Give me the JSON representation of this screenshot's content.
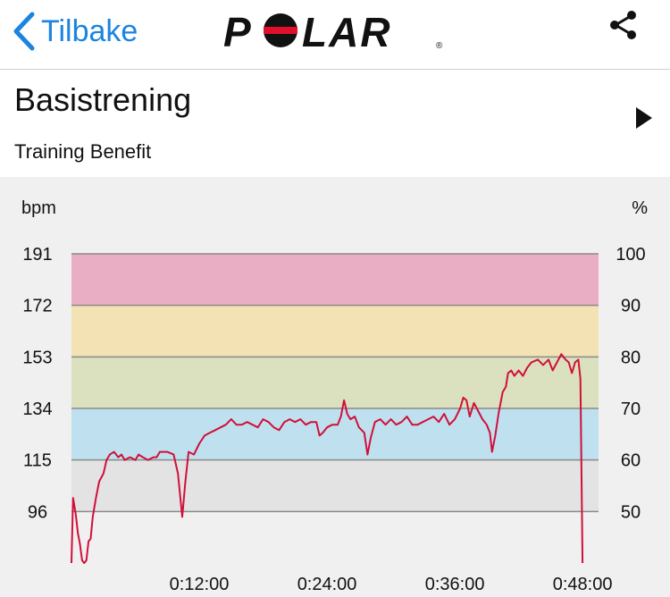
{
  "nav": {
    "back_label": "Tilbake",
    "back_icon": "chevron-left-icon",
    "logo_text": "POLAR",
    "share_icon": "share-icon"
  },
  "header": {
    "title": "Basistrening",
    "subtitle": "Training Benefit",
    "play_icon": "play-icon"
  },
  "colors": {
    "accent": "#1a84e0",
    "line": "#d0103a",
    "zone_max": "#eaaec4",
    "zone_hard": "#f3e2b4",
    "zone_moderate": "#dbe1bf",
    "zone_light": "#bfe1ef",
    "zone_very_light": "#e3e3e3"
  },
  "chart_data": {
    "type": "line",
    "left_axis_label": "bpm",
    "right_axis_label": "%",
    "left_ticks": [
      "191",
      "172",
      "153",
      "134",
      "115",
      "96"
    ],
    "right_ticks": [
      "100",
      "90",
      "80",
      "70",
      "60",
      "50"
    ],
    "x_ticks": [
      "0:12:00",
      "0:24:00",
      "0:36:00",
      "0:48:00"
    ],
    "x_tick_minutes": [
      12,
      24,
      36,
      48
    ],
    "xlim_minutes": [
      0,
      49.5
    ],
    "ylim_bpm": [
      77,
      191
    ],
    "zones": [
      {
        "name": "zone-max",
        "from": 172,
        "to": 191,
        "color": "#eaaec4"
      },
      {
        "name": "zone-hard",
        "from": 153,
        "to": 172,
        "color": "#f3e2b4"
      },
      {
        "name": "zone-moderate",
        "from": 134,
        "to": 153,
        "color": "#dbe1bf"
      },
      {
        "name": "zone-light",
        "from": 115,
        "to": 134,
        "color": "#bfe1ef"
      },
      {
        "name": "zone-very-light",
        "from": 96,
        "to": 115,
        "color": "#e3e3e3"
      }
    ],
    "series": [
      {
        "values": [
          [
            0.0,
            77
          ],
          [
            0.15,
            101
          ],
          [
            0.4,
            95
          ],
          [
            0.6,
            88
          ],
          [
            0.8,
            84
          ],
          [
            1.0,
            78
          ],
          [
            1.2,
            77
          ],
          [
            1.4,
            78
          ],
          [
            1.6,
            85
          ],
          [
            1.8,
            86
          ],
          [
            2.0,
            94
          ],
          [
            2.3,
            101
          ],
          [
            2.6,
            107
          ],
          [
            3.0,
            110
          ],
          [
            3.3,
            115
          ],
          [
            3.6,
            117
          ],
          [
            4.0,
            118
          ],
          [
            4.4,
            116
          ],
          [
            4.7,
            117
          ],
          [
            5.0,
            115
          ],
          [
            5.5,
            116
          ],
          [
            6.0,
            115
          ],
          [
            6.3,
            117
          ],
          [
            6.7,
            116
          ],
          [
            7.2,
            115
          ],
          [
            7.7,
            116
          ],
          [
            8.0,
            116
          ],
          [
            8.3,
            118
          ],
          [
            9.0,
            118
          ],
          [
            9.6,
            117
          ],
          [
            10.0,
            110
          ],
          [
            10.4,
            94
          ],
          [
            10.7,
            107
          ],
          [
            11.0,
            118
          ],
          [
            11.5,
            117
          ],
          [
            12.0,
            121
          ],
          [
            12.5,
            124
          ],
          [
            13.0,
            125
          ],
          [
            13.5,
            126
          ],
          [
            14.0,
            127
          ],
          [
            14.5,
            128
          ],
          [
            15.0,
            130
          ],
          [
            15.5,
            128
          ],
          [
            16.0,
            128
          ],
          [
            16.5,
            129
          ],
          [
            17.0,
            128
          ],
          [
            17.5,
            127
          ],
          [
            18.0,
            130
          ],
          [
            18.5,
            129
          ],
          [
            19.0,
            127
          ],
          [
            19.5,
            126
          ],
          [
            20.0,
            129
          ],
          [
            20.5,
            130
          ],
          [
            21.0,
            129
          ],
          [
            21.5,
            130
          ],
          [
            22.0,
            128
          ],
          [
            22.5,
            129
          ],
          [
            23.0,
            129
          ],
          [
            23.3,
            124
          ],
          [
            23.6,
            125
          ],
          [
            24.0,
            127
          ],
          [
            24.5,
            128
          ],
          [
            25.0,
            128
          ],
          [
            25.3,
            131
          ],
          [
            25.6,
            137
          ],
          [
            25.9,
            132
          ],
          [
            26.2,
            130
          ],
          [
            26.6,
            131
          ],
          [
            27.0,
            127
          ],
          [
            27.5,
            125
          ],
          [
            27.8,
            117
          ],
          [
            28.1,
            123
          ],
          [
            28.5,
            129
          ],
          [
            29.0,
            130
          ],
          [
            29.5,
            128
          ],
          [
            30.0,
            130
          ],
          [
            30.5,
            128
          ],
          [
            31.0,
            129
          ],
          [
            31.5,
            131
          ],
          [
            32.0,
            128
          ],
          [
            32.5,
            128
          ],
          [
            33.0,
            129
          ],
          [
            33.5,
            130
          ],
          [
            34.0,
            131
          ],
          [
            34.5,
            129
          ],
          [
            35.0,
            132
          ],
          [
            35.5,
            128
          ],
          [
            36.0,
            130
          ],
          [
            36.5,
            134
          ],
          [
            36.8,
            138
          ],
          [
            37.1,
            137
          ],
          [
            37.4,
            131
          ],
          [
            37.8,
            136
          ],
          [
            38.2,
            133
          ],
          [
            38.6,
            130
          ],
          [
            39.0,
            128
          ],
          [
            39.3,
            125
          ],
          [
            39.5,
            118
          ],
          [
            39.8,
            124
          ],
          [
            40.1,
            132
          ],
          [
            40.5,
            140
          ],
          [
            40.8,
            142
          ],
          [
            41.0,
            147
          ],
          [
            41.3,
            148
          ],
          [
            41.6,
            146
          ],
          [
            42.0,
            148
          ],
          [
            42.4,
            146
          ],
          [
            42.8,
            149
          ],
          [
            43.2,
            151
          ],
          [
            43.8,
            152
          ],
          [
            44.3,
            150
          ],
          [
            44.8,
            152
          ],
          [
            45.2,
            148
          ],
          [
            45.6,
            151
          ],
          [
            46.0,
            154
          ],
          [
            46.4,
            152
          ],
          [
            46.7,
            151
          ],
          [
            47.0,
            147
          ],
          [
            47.3,
            151
          ],
          [
            47.6,
            152
          ],
          [
            47.8,
            145
          ],
          [
            48.0,
            77
          ]
        ]
      }
    ]
  }
}
